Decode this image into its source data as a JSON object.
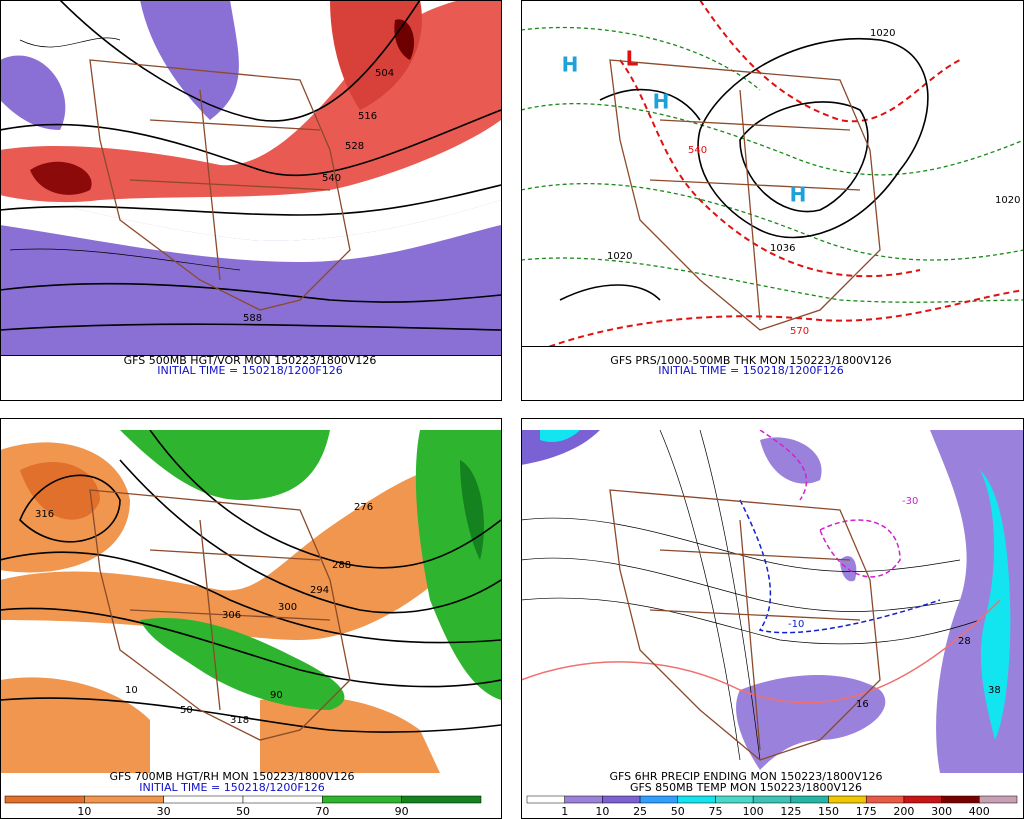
{
  "panels": [
    {
      "caption": [
        "GFS 500MB HGT/VOR MON 150223/1800V126",
        "INITIAL TIME = 150218/1200F126"
      ],
      "labels": [
        "504",
        "516",
        "528",
        "540",
        "588"
      ]
    },
    {
      "caption": [
        "GFS PRS/1000-500MB THK MON 150223/1800V126",
        "INITIAL TIME = 150218/1200F126"
      ],
      "labels": [
        "H",
        "L",
        "H",
        "H",
        "1020",
        "1036",
        "1020",
        "570",
        "540",
        "1020"
      ]
    },
    {
      "caption": [
        "GFS 700MB HGT/RH MON 150223/1800V126",
        "INITIAL TIME = 150218/1200F126"
      ],
      "labels": [
        "316",
        "276",
        "288",
        "294",
        "300",
        "306",
        "318",
        "10",
        "50",
        "90"
      ]
    },
    {
      "caption": [
        "GFS 6HR PRECIP ENDING MON 150223/1800V126",
        "GFS 850MB TEMP MON 150223/1800V126"
      ],
      "labels": [
        "-10",
        "-30",
        "16",
        "28",
        "38"
      ]
    }
  ],
  "colorbars": [
    {
      "labels": [
        10,
        30,
        50,
        70,
        90
      ],
      "colors": [
        "#e0702c",
        "#f0964e",
        "#ffffff",
        "#ffffff",
        "#2eb42e",
        "#14821e"
      ]
    },
    {
      "labels": [
        1,
        10,
        25,
        50,
        75,
        100,
        125,
        150,
        175,
        200,
        300,
        400
      ],
      "colors": [
        "#ffffff",
        "#9a82dc",
        "#7a62d4",
        "#2fa0ff",
        "#12e4f0",
        "#4ad8c8",
        "#3cc4b4",
        "#26b4a4",
        "#f0c800",
        "#e85a46",
        "#c81414",
        "#7a0000",
        "#c8a0b4"
      ]
    }
  ]
}
